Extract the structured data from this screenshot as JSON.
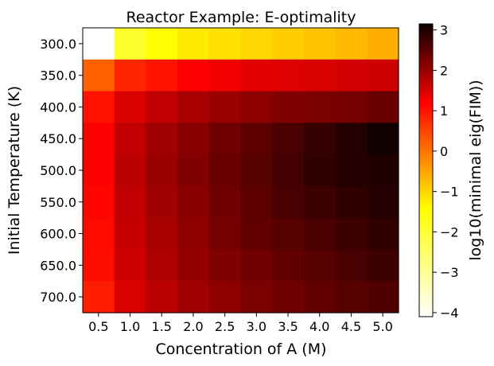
{
  "chart_data": {
    "type": "heatmap",
    "title": "Reactor Example: E-optimality",
    "xlabel": "Concentration of A (M)",
    "ylabel": "Initial Temperature (K)",
    "x_ticks": [
      "0.5",
      "1.0",
      "1.5",
      "2.0",
      "2.5",
      "3.0",
      "3.5",
      "4.0",
      "4.5",
      "5.0"
    ],
    "y_ticks": [
      "300.0",
      "350.0",
      "400.0",
      "450.0",
      "500.0",
      "550.0",
      "600.0",
      "650.0",
      "700.0"
    ],
    "colormap": "hot_r",
    "colorbar": {
      "label": "log10(minimal eig(FIM))",
      "min": -4.1,
      "max": 3.15,
      "ticks": [
        3,
        2,
        1,
        0,
        -1,
        -2,
        -3,
        -4
      ],
      "tick_labels": [
        "3",
        "2",
        "1",
        "0",
        "−1",
        "−2",
        "−3",
        "−4"
      ]
    },
    "values": [
      [
        -4.1,
        -1.9,
        -1.4,
        -1.2,
        -1.1,
        -1.0,
        -0.9,
        -0.8,
        -0.7,
        -0.6
      ],
      [
        0.2,
        0.8,
        1.0,
        1.2,
        1.3,
        1.4,
        1.45,
        1.5,
        1.55,
        1.6
      ],
      [
        1.0,
        1.5,
        1.7,
        1.9,
        2.0,
        2.1,
        2.2,
        2.25,
        2.3,
        2.4
      ],
      [
        1.2,
        1.7,
        1.95,
        2.15,
        2.35,
        2.5,
        2.65,
        2.8,
        2.95,
        3.1
      ],
      [
        1.2,
        1.75,
        2.0,
        2.2,
        2.4,
        2.55,
        2.7,
        2.85,
        2.95,
        3.0
      ],
      [
        1.15,
        1.7,
        1.95,
        2.15,
        2.35,
        2.5,
        2.65,
        2.75,
        2.85,
        2.95
      ],
      [
        1.1,
        1.65,
        1.9,
        2.1,
        2.3,
        2.45,
        2.55,
        2.65,
        2.75,
        2.85
      ],
      [
        1.05,
        1.6,
        1.85,
        2.05,
        2.2,
        2.35,
        2.45,
        2.55,
        2.65,
        2.75
      ],
      [
        0.9,
        1.5,
        1.75,
        1.95,
        2.1,
        2.25,
        2.35,
        2.45,
        2.55,
        2.6
      ]
    ]
  }
}
